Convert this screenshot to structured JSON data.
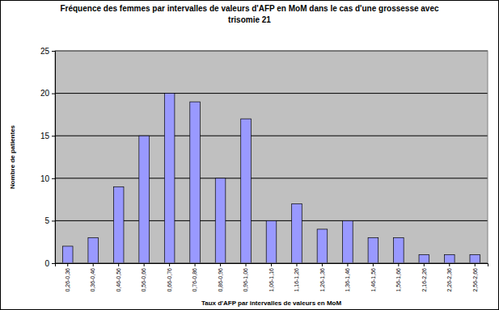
{
  "chart_data": {
    "type": "bar",
    "title": "Fréquence des femmes par intervalles de valeurs d'AFP en MoM dans le cas d'une grossesse avec trisomie 21",
    "xlabel": "Taux d'AFP par intervalles de valeurs en MoM",
    "ylabel": "Nombre de patientes",
    "categories": [
      "0,26-0,36",
      "0,36-0,46",
      "0,46-0,56",
      "0,56-0,66",
      "0,66-0,76",
      "0,76-0,86",
      "0,86-0,96",
      "0,96-1,06",
      "1,06-1,16",
      "1,16-1,26",
      "1,26-1,36",
      "1,36-1,46",
      "1,46-1,56",
      "1,56-1,66",
      "2,16-2,26",
      "2,26-2,36",
      "2,56-2,66"
    ],
    "values": [
      2,
      3,
      9,
      15,
      20,
      19,
      10,
      17,
      5,
      7,
      4,
      5,
      3,
      3,
      1,
      1,
      1
    ],
    "color": "#9999ff",
    "ylim": [
      0,
      25
    ],
    "yticks": [
      0,
      5,
      10,
      15,
      20,
      25
    ],
    "grid": true
  }
}
